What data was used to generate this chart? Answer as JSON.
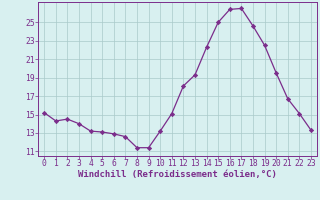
{
  "x": [
    0,
    1,
    2,
    3,
    4,
    5,
    6,
    7,
    8,
    9,
    10,
    11,
    12,
    13,
    14,
    15,
    16,
    17,
    18,
    19,
    20,
    21,
    22,
    23
  ],
  "y": [
    15.2,
    14.3,
    14.5,
    14.0,
    13.2,
    13.1,
    12.9,
    12.6,
    11.4,
    11.4,
    13.2,
    15.1,
    18.1,
    19.3,
    22.3,
    25.0,
    26.4,
    26.5,
    24.6,
    22.5,
    19.5,
    16.7,
    15.1,
    13.3
  ],
  "line_color": "#7B2D8B",
  "marker": "D",
  "marker_size": 2.2,
  "bg_color": "#d8f0f0",
  "grid_color": "#aacaca",
  "xlabel": "Windchill (Refroidissement éolien,°C)",
  "xlabel_color": "#7B2D8B",
  "xlabel_fontsize": 6.5,
  "ylabel_ticks": [
    11,
    13,
    15,
    17,
    19,
    21,
    23,
    25
  ],
  "ylim": [
    10.5,
    27.2
  ],
  "xlim": [
    -0.5,
    23.5
  ],
  "xtick_labels": [
    "0",
    "1",
    "2",
    "3",
    "4",
    "5",
    "6",
    "7",
    "8",
    "9",
    "10",
    "11",
    "12",
    "13",
    "14",
    "15",
    "16",
    "17",
    "18",
    "19",
    "20",
    "21",
    "22",
    "23"
  ],
  "tick_color": "#7B2D8B",
  "tick_fontsize": 5.8,
  "spine_color": "#7B2D8B",
  "line_width": 0.9
}
